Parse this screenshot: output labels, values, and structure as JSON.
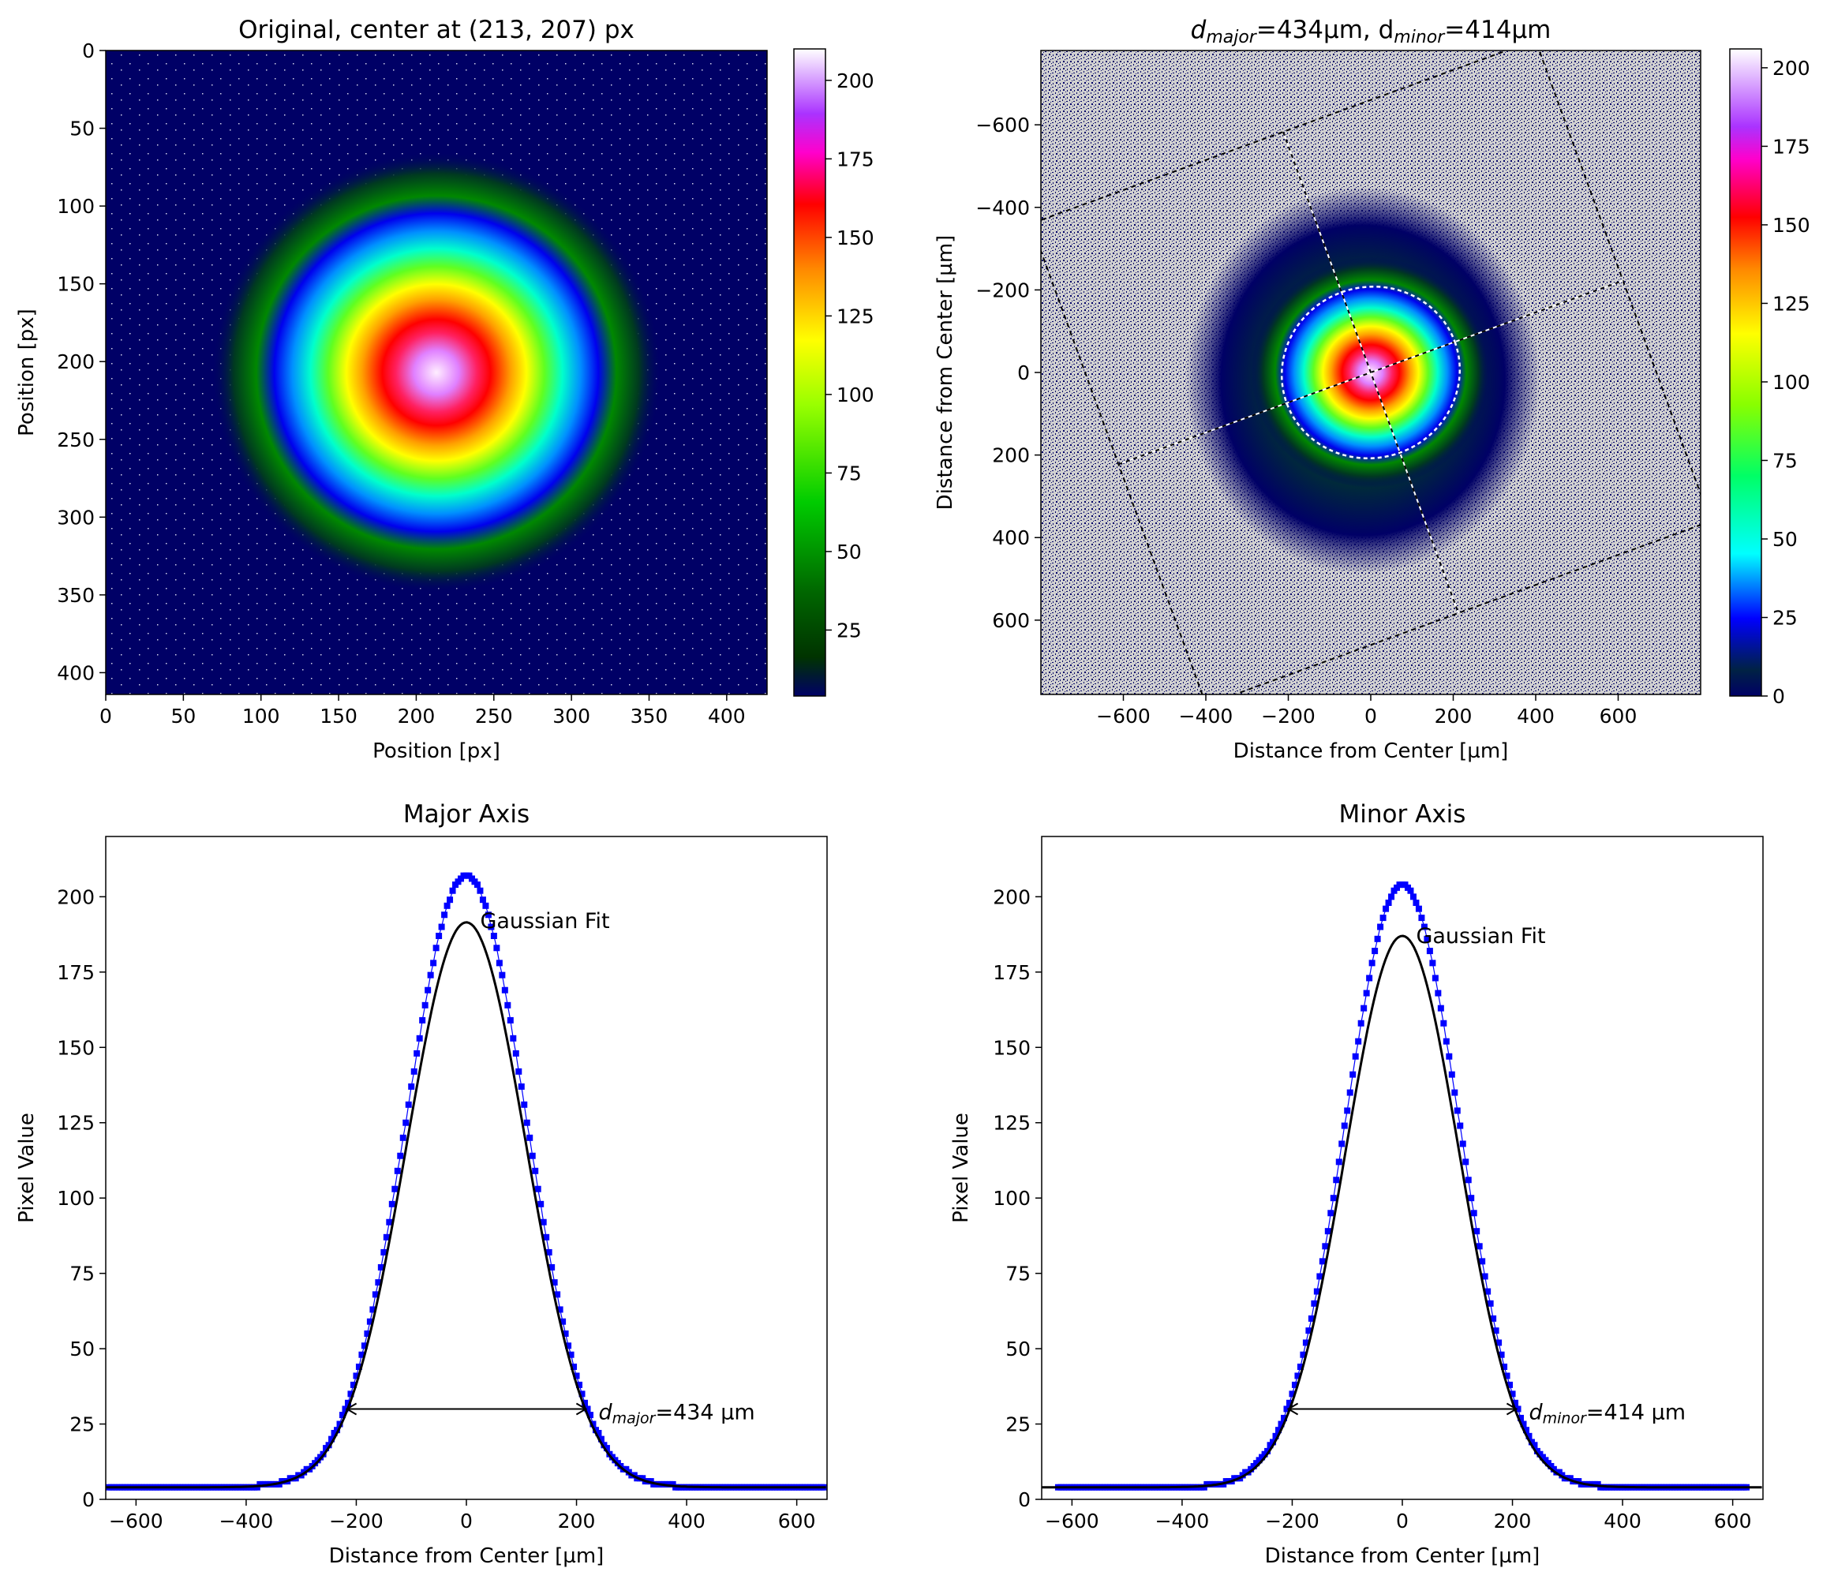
{
  "figure": {
    "background": "#ffffff",
    "colormap": [
      "#000066",
      "#003300",
      "#00cc00",
      "#99ff00",
      "#ffff00",
      "#ff8800",
      "#ff0000",
      "#ff00aa",
      "#aa33ff",
      "#ffffff"
    ],
    "masked_color": "#d0d0d0"
  },
  "chart_data": [
    {
      "id": "original",
      "type": "heatmap",
      "title": "Original, center at (213, 207) px",
      "xlabel": "Position [px]",
      "ylabel": "Position [px]",
      "xlim": [
        0,
        426
      ],
      "ylim": [
        414,
        0
      ],
      "xticks": [
        0,
        50,
        100,
        150,
        200,
        250,
        300,
        350,
        400
      ],
      "yticks": [
        0,
        50,
        100,
        150,
        200,
        250,
        300,
        350,
        400
      ],
      "center": [
        213,
        207
      ],
      "peak": 210,
      "background_level": 4,
      "colorbar": {
        "min": 4,
        "max": 210,
        "ticks": [
          25,
          50,
          75,
          100,
          125,
          150,
          175,
          200
        ]
      }
    },
    {
      "id": "analysis",
      "type": "heatmap",
      "title_prefix": "d",
      "title_sub1": "major",
      "title_mid": "=434µm, d",
      "title_sub2": "minor",
      "title_suffix": "=414µm",
      "xlabel": "Distance from Center [µm]",
      "ylabel": "Distance from Center [µm]",
      "xlim": [
        -800,
        800
      ],
      "ylim": [
        780,
        -780
      ],
      "xticks": [
        -600,
        -400,
        -200,
        0,
        200,
        400,
        600
      ],
      "yticks": [
        -600,
        -400,
        -200,
        0,
        200,
        400,
        600
      ],
      "ellipse": {
        "d_major": 434,
        "d_minor": 414,
        "angle_deg": 20
      },
      "integration_rect": {
        "d_major": 1302,
        "d_minor": 1242,
        "angle_deg": 20
      },
      "colorbar": {
        "min": 0,
        "max": 206,
        "ticks": [
          0,
          25,
          50,
          75,
          100,
          125,
          150,
          175,
          200
        ]
      }
    },
    {
      "id": "major",
      "type": "line",
      "title": "Major Axis",
      "xlabel": "Distance from Center [µm]",
      "ylabel": "Pixel Value",
      "xlim": [
        -655,
        655
      ],
      "ylim": [
        0,
        220
      ],
      "xticks": [
        -600,
        -400,
        -200,
        0,
        200,
        400,
        600
      ],
      "yticks": [
        0,
        25,
        50,
        75,
        100,
        125,
        150,
        175,
        200
      ],
      "series": [
        {
          "type": "scatter",
          "color": "#0000ff",
          "data_range": [
            -650,
            650
          ],
          "peak": 207,
          "center": 0,
          "sigma": 108.5,
          "offset": 4
        },
        {
          "type": "line",
          "color": "#000000",
          "peak": 191.5,
          "center": 0,
          "sigma": 108.5,
          "offset": 4
        }
      ],
      "fit_label": "Gaussian Fit",
      "fit_label_at": [
        25,
        192
      ],
      "arrow": {
        "x1": -217,
        "x2": 217,
        "y": 30
      },
      "arrow_label_d": "d",
      "arrow_label_sub": "major",
      "arrow_label_rest": "=434 µm",
      "arrow_label_at": [
        240,
        29
      ]
    },
    {
      "id": "minor",
      "type": "line",
      "title": "Minor Axis",
      "xlabel": "Distance from Center [µm]",
      "ylabel": "Pixel Value",
      "xlim": [
        -655,
        655
      ],
      "ylim": [
        0,
        220
      ],
      "xticks": [
        -600,
        -400,
        -200,
        0,
        200,
        400,
        600
      ],
      "yticks": [
        0,
        25,
        50,
        75,
        100,
        125,
        150,
        175,
        200
      ],
      "series": [
        {
          "type": "scatter",
          "color": "#0000ff",
          "data_range": [
            -625,
            625
          ],
          "peak": 204,
          "center": 0,
          "sigma": 103.5,
          "offset": 4
        },
        {
          "type": "line",
          "color": "#000000",
          "peak": 187,
          "center": 0,
          "sigma": 103.5,
          "offset": 4
        }
      ],
      "fit_label": "Gaussian Fit",
      "fit_label_at": [
        25,
        187
      ],
      "arrow": {
        "x1": -207,
        "x2": 207,
        "y": 30
      },
      "arrow_label_d": "d",
      "arrow_label_sub": "minor",
      "arrow_label_rest": "=414 µm",
      "arrow_label_at": [
        230,
        29
      ]
    }
  ]
}
